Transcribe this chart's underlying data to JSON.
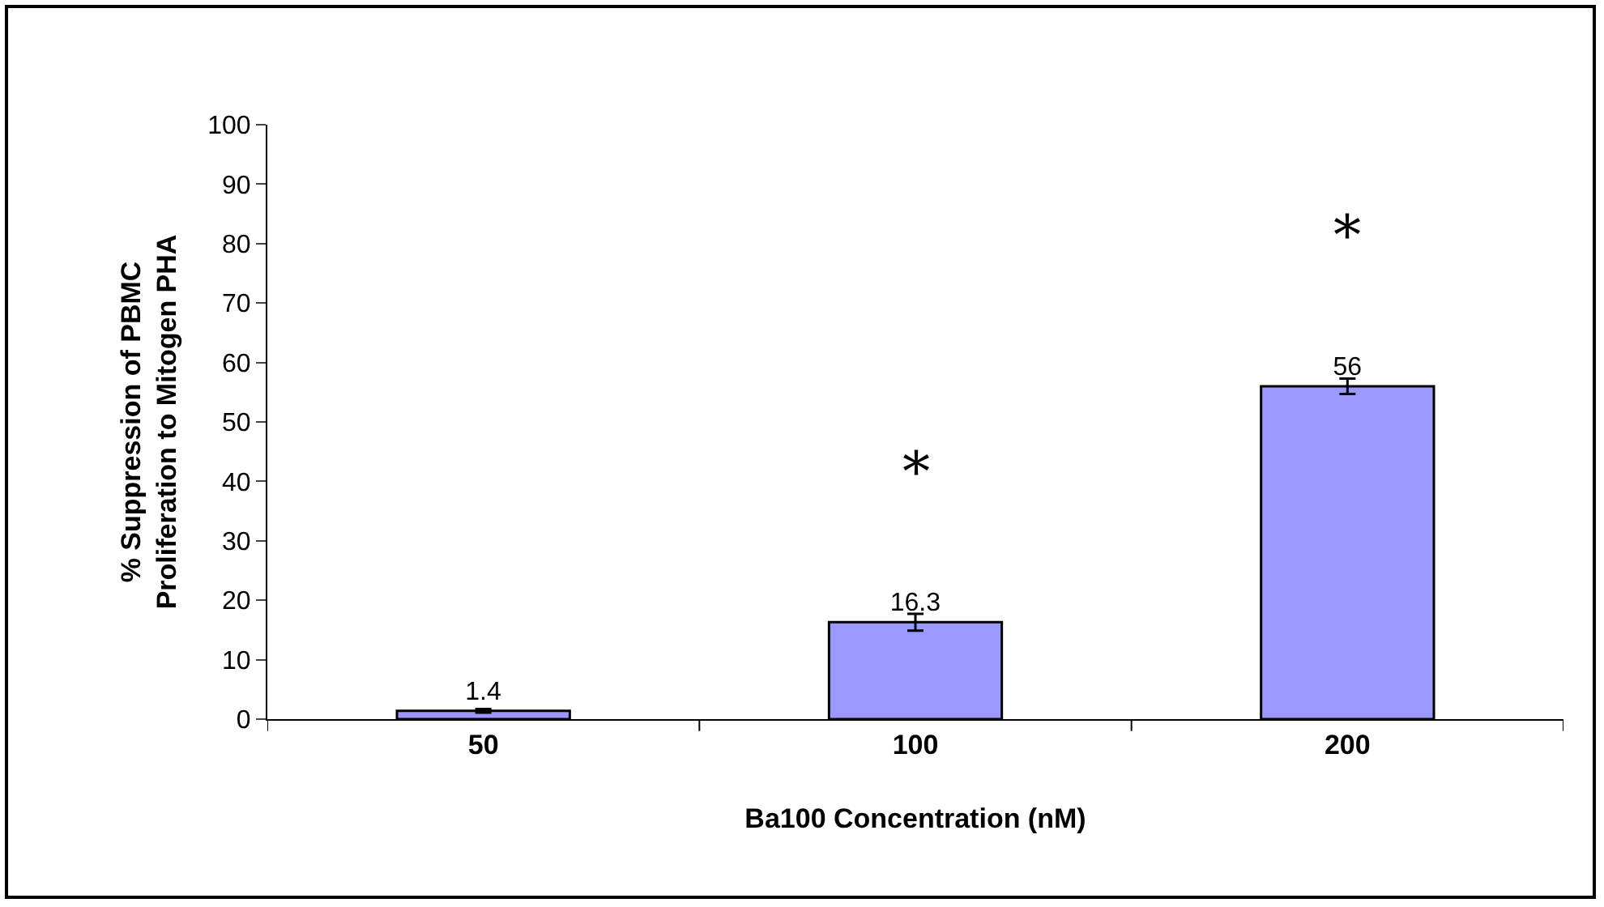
{
  "chart_data": {
    "type": "bar",
    "xlabel": "Ba100 Concentration (nM)",
    "ylabel": "% Suppression of PBMC\nProliferation to Mitogen PHA",
    "categories": [
      "50",
      "100",
      "200"
    ],
    "values": [
      1.4,
      16.3,
      56
    ],
    "errors": [
      0.3,
      1.4,
      1.3
    ],
    "color": "#9999ff",
    "data_labels": true,
    "ylim": [
      0,
      100
    ],
    "yticks": [
      0,
      10,
      20,
      30,
      40,
      50,
      60,
      70,
      80,
      90,
      100
    ],
    "grid": false,
    "legend": false,
    "annotations": [
      "*",
      "*"
    ]
  }
}
